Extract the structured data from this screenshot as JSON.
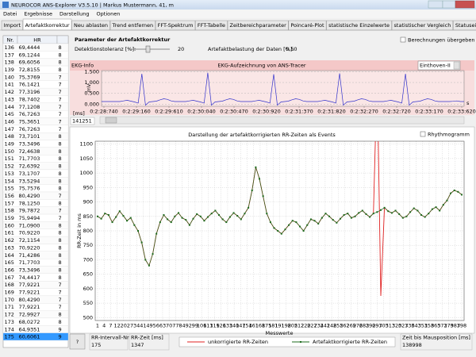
{
  "window": {
    "title": "NEUROCOR ANS-Explorer V3.5.10 | Markus Mustermann, 41, m"
  },
  "menu": [
    "Datei",
    "Ergebnisse",
    "Darstellung",
    "Optionen"
  ],
  "tabs": [
    "Import",
    "Artefaktkorrektur",
    "Neu ablasten",
    "Trend entfernen",
    "FFT-Spektrum",
    "FFT-Tabelle",
    "Zeitbereichparameter",
    "Poincaré-Plot",
    "statistische Einzelwerte",
    "statistischer Vergleich",
    "Statuseinschätzung"
  ],
  "active_tab": 1,
  "table": {
    "header": [
      "Nr.",
      "HR"
    ],
    "selected_row": 39,
    "rows": [
      [
        "136",
        "69,4444",
        "8"
      ],
      [
        "137",
        "69,1244",
        "8"
      ],
      [
        "138",
        "69,6056",
        "8"
      ],
      [
        "139",
        "72,8155",
        "8"
      ],
      [
        "140",
        "75,3769",
        "7"
      ],
      [
        "141",
        "76,1421",
        "7"
      ],
      [
        "142",
        "77,3196",
        "7"
      ],
      [
        "143",
        "78,7402",
        "7"
      ],
      [
        "144",
        "77,1208",
        "7"
      ],
      [
        "145",
        "76,7263",
        "7"
      ],
      [
        "146",
        "75,3651",
        "7"
      ],
      [
        "147",
        "76,7263",
        "7"
      ],
      [
        "148",
        "73,7101",
        "8"
      ],
      [
        "149",
        "73,3496",
        "8"
      ],
      [
        "150",
        "72,4638",
        "8"
      ],
      [
        "151",
        "71,7703",
        "8"
      ],
      [
        "152",
        "72,6392",
        "8"
      ],
      [
        "153",
        "73,1707",
        "8"
      ],
      [
        "154",
        "73,5294",
        "8"
      ],
      [
        "155",
        "75,7576",
        "8"
      ],
      [
        "156",
        "80,4290",
        "7"
      ],
      [
        "157",
        "78,1250",
        "8"
      ],
      [
        "158",
        "79,7872",
        "7"
      ],
      [
        "159",
        "75,9494",
        "7"
      ],
      [
        "160",
        "71,0900",
        "8"
      ],
      [
        "161",
        "70,9220",
        "8"
      ],
      [
        "162",
        "72,1154",
        "8"
      ],
      [
        "163",
        "70,9220",
        "8"
      ],
      [
        "164",
        "71,4286",
        "8"
      ],
      [
        "165",
        "71,7703",
        "8"
      ],
      [
        "166",
        "73,3496",
        "8"
      ],
      [
        "167",
        "74,4417",
        "8"
      ],
      [
        "168",
        "77,9221",
        "7"
      ],
      [
        "169",
        "77,9221",
        "7"
      ],
      [
        "170",
        "80,4290",
        "7"
      ],
      [
        "171",
        "77,9221",
        "7"
      ],
      [
        "172",
        "72,9927",
        "8"
      ],
      [
        "173",
        "68,0272",
        "8"
      ],
      [
        "174",
        "64,9351",
        "9"
      ],
      [
        "175",
        "60,6061",
        "9"
      ]
    ]
  },
  "parameters": {
    "title": "Parameter der Artefaktkorrektur",
    "tolerance_label": "Detektionstoleranz [%]:",
    "tolerance_value": "20",
    "load_label": "Artefaktbelastung der Daten [%]:",
    "load_value": "0,50",
    "checkbox": "Berechnungen übergeben"
  },
  "ekg": {
    "info": "EKG-Info",
    "title": "EKG-Aufzeichnung von ANS-Tracer",
    "lead": "Einthoven-II",
    "y_label": "mV",
    "x_unit": "s",
    "ylim": [
      -0.1,
      1.55
    ],
    "yticks": [
      {
        "value": 1.5,
        "label": "1.500"
      },
      {
        "value": 1,
        "label": "1.000"
      },
      {
        "value": 0.5,
        "label": "0.500"
      },
      {
        "value": 0,
        "label": "0.000"
      }
    ],
    "xticks": [
      "0:2:28:740",
      "0:2:29:160",
      "0:2:29:610",
      "0:2:30:040",
      "0:2:30:470",
      "0:2:30:920",
      "0:2:31:370",
      "0:2:31:820",
      "0:2:32:270",
      "0:2:32:720",
      "0:2:33:170",
      "0:2:33:620"
    ],
    "color": "#3333cc",
    "position_label": "[ms]",
    "position_value": "141251",
    "values": [
      0.12,
      0.12,
      0.12,
      0.12,
      0.12,
      0.12,
      0.15,
      0.18,
      0.14,
      0.1,
      0.05,
      1.4,
      -0.05,
      0.1,
      0.12,
      0.14,
      0.2,
      0.25,
      0.22,
      0.15,
      0.12,
      0.12,
      0.12,
      0.12,
      0.15,
      0.18,
      0.14,
      0.1,
      0.05,
      1.45,
      -0.05,
      0.1,
      0.12,
      0.14,
      0.2,
      0.25,
      0.22,
      0.15,
      0.12,
      0.12,
      0.12,
      0.12,
      0.15,
      0.18,
      0.14,
      0.1,
      0.05,
      1.38,
      -0.05,
      0.1,
      0.12,
      0.14,
      0.2,
      0.25,
      0.22,
      0.15,
      0.12,
      0.12,
      0.12,
      0.12,
      0.15,
      0.18,
      0.14,
      0.1,
      0.05,
      1.42,
      -0.05,
      0.1,
      0.12,
      0.14,
      0.2,
      0.25,
      0.22,
      0.15,
      0.12,
      0.12,
      0.12,
      0.12,
      0.15,
      0.18,
      0.14,
      0.1,
      0.05,
      1.4,
      -0.05,
      0.1,
      0.12,
      0.14,
      0.2,
      0.25,
      0.22,
      0.15,
      0.12,
      0.12,
      0.12,
      0.12,
      0.13,
      0.15,
      0.12,
      0.12
    ]
  },
  "rr_chart": {
    "title": "Darstellung der artefaktkorrigierten RR-Zeiten als Events",
    "checkbox": "Rhythmogramm",
    "y_label": "RR-Zeit in ms",
    "x_label": "Messwerte",
    "grid": true,
    "ylim": [
      490,
      1110
    ],
    "yticks": [
      500,
      550,
      600,
      650,
      700,
      750,
      800,
      850,
      900,
      950,
      1000,
      1050,
      1100
    ],
    "xticks": [
      "1",
      "4",
      "7",
      "12",
      "20",
      "27",
      "34",
      "41",
      "49",
      "56",
      "63",
      "70",
      "77",
      "84",
      "92",
      "99",
      "106",
      "113",
      "119",
      "126",
      "133",
      "140",
      "147",
      "154",
      "161",
      "168",
      "175",
      "181",
      "191",
      "198",
      "205",
      "212",
      "220",
      "227",
      "234",
      "241",
      "248",
      "255",
      "262",
      "269",
      "276",
      "283",
      "290",
      "297",
      "305",
      "313",
      "320",
      "327",
      "336",
      "343",
      "351",
      "358",
      "365",
      "372",
      "379",
      "387",
      "398"
    ],
    "series": [
      {
        "name": "unkorrigierte RR-Zeiten",
        "color": "#e02020",
        "values": [
          850,
          842,
          860,
          855,
          830,
          848,
          868,
          852,
          835,
          845,
          820,
          800,
          760,
          700,
          680,
          720,
          790,
          830,
          855,
          840,
          830,
          850,
          862,
          845,
          838,
          820,
          842,
          858,
          850,
          835,
          848,
          860,
          870,
          855,
          840,
          830,
          848,
          862,
          852,
          840,
          860,
          880,
          940,
          1020,
          980,
          920,
          860,
          830,
          810,
          800,
          790,
          805,
          820,
          835,
          830,
          815,
          800,
          820,
          840,
          835,
          825,
          845,
          860,
          850,
          838,
          828,
          842,
          855,
          860,
          845,
          850,
          862,
          870,
          858,
          848,
          860,
          1347,
          575,
          880,
          868,
          862,
          870,
          858,
          845,
          850,
          865,
          878,
          870,
          855,
          848,
          860,
          875,
          882,
          870,
          890,
          905,
          930,
          940,
          935,
          925
        ]
      },
      {
        "name": "Artefaktkorrigierte RR-Zeiten",
        "color": "#1e6b1e",
        "values": [
          850,
          842,
          860,
          855,
          830,
          848,
          868,
          852,
          835,
          845,
          820,
          800,
          760,
          700,
          680,
          720,
          790,
          830,
          855,
          840,
          830,
          850,
          862,
          845,
          838,
          820,
          842,
          858,
          850,
          835,
          848,
          860,
          870,
          855,
          840,
          830,
          848,
          862,
          852,
          840,
          860,
          880,
          940,
          1020,
          980,
          920,
          860,
          830,
          810,
          800,
          790,
          805,
          820,
          835,
          830,
          815,
          800,
          820,
          840,
          835,
          825,
          845,
          860,
          850,
          838,
          828,
          842,
          855,
          860,
          845,
          850,
          862,
          870,
          858,
          848,
          860,
          865,
          872,
          880,
          868,
          862,
          870,
          858,
          845,
          850,
          865,
          878,
          870,
          855,
          848,
          860,
          875,
          882,
          870,
          890,
          905,
          930,
          940,
          935,
          925
        ]
      }
    ]
  },
  "status": {
    "interval_label": "RR-Intervall-Nr",
    "interval_value": "175",
    "rr_label": "RR-Zeit [ms]",
    "rr_value": "1347",
    "mouse_label": "Zeit bis Mausposition [ms]",
    "mouse_value": "138998"
  },
  "help_button": "?"
}
